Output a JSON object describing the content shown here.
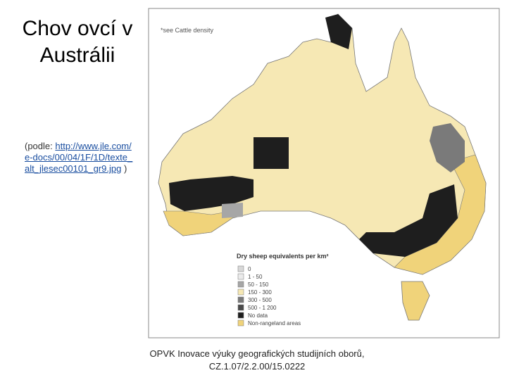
{
  "title": "Chov ovcí v Austrálii",
  "source": {
    "prefix": "(podle:",
    "link": "http://www.jle.com/e-docs/00/04/1F/1D/texte_alt_jlesec00101_gr9.jpg",
    "suffix": ")"
  },
  "map": {
    "note": "*see Cattle density",
    "legend": {
      "title": "Dry sheep equivalents per km²",
      "items": [
        {
          "label": "0",
          "color": "#d8d8d8"
        },
        {
          "label": "1 - 50",
          "color": "#ebebeb"
        },
        {
          "label": "50 - 150",
          "color": "#a6a6a6"
        },
        {
          "label": "150 - 300",
          "color": "#f6e8b4"
        },
        {
          "label": "300 - 500",
          "color": "#7a7a7a"
        },
        {
          "label": "500 - 1 200",
          "color": "#4a4a4a"
        },
        {
          "label": "No data",
          "color": "#1e1e1e"
        },
        {
          "label": "Non-rangeland areas",
          "color": "#f0d37a"
        }
      ]
    }
  },
  "footer": {
    "line1": "OPVK Inovace výuky geografických studijních oborů,",
    "line2": "CZ.1.07/2.2.00/15.0222"
  }
}
